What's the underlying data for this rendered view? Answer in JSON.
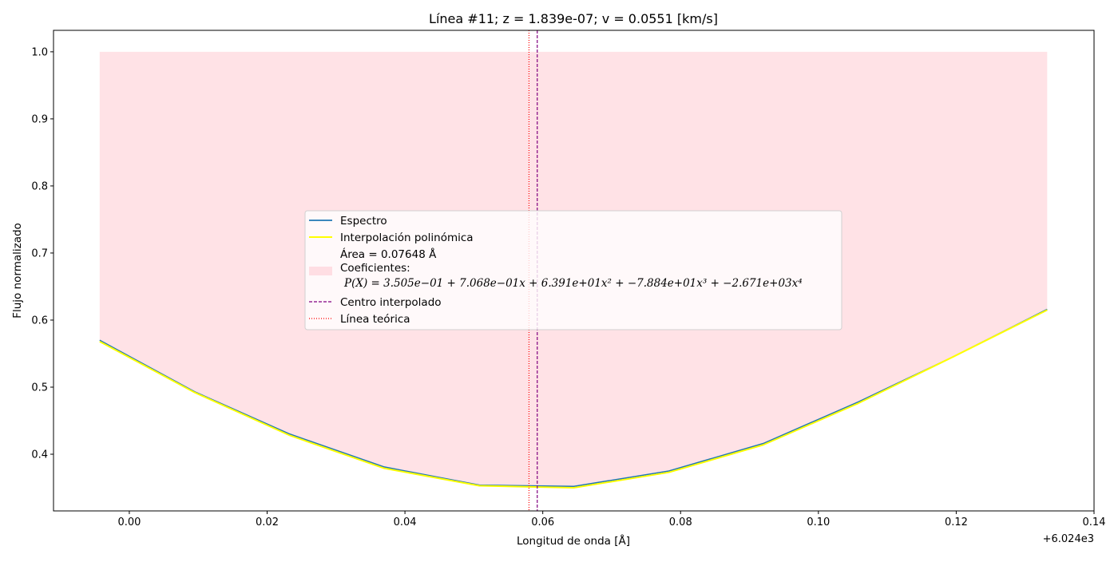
{
  "chart_data": {
    "type": "line",
    "title": "Línea #11; z = 1.839e-07; v = 0.0551 [km/s]",
    "xlabel": "Longitud de onda [Å]",
    "ylabel": "Flujo normalizado",
    "x_offset_label": "+6.024e3",
    "xlim": [
      -0.011,
      0.14
    ],
    "ylim": [
      0.3155,
      1.032
    ],
    "x_ticks": [
      0.0,
      0.02,
      0.04,
      0.06,
      0.08,
      0.1,
      0.12,
      0.14
    ],
    "x_tick_labels": [
      "0.00",
      "0.02",
      "0.04",
      "0.06",
      "0.08",
      "0.10",
      "0.12",
      "0.14"
    ],
    "y_ticks": [
      0.4,
      0.5,
      0.6,
      0.7,
      0.8,
      0.9,
      1.0
    ],
    "y_tick_labels": [
      "0.4",
      "0.5",
      "0.6",
      "0.7",
      "0.8",
      "0.9",
      "1.0"
    ],
    "grid": false,
    "legend_position": "center",
    "series": [
      {
        "name": "Espectro",
        "color": "#1f77b4",
        "x": [
          -0.0043,
          0.0095,
          0.0233,
          0.037,
          0.0508,
          0.0645,
          0.0783,
          0.092,
          0.1058,
          0.1195,
          0.1332
        ],
        "y": [
          0.57,
          0.493,
          0.43,
          0.381,
          0.354,
          0.352,
          0.375,
          0.416,
          0.478,
          0.545,
          0.616
        ]
      },
      {
        "name": "Interpolación polinómica",
        "color": "#ffff00",
        "x": [
          -0.0043,
          0.0095,
          0.0233,
          0.037,
          0.0508,
          0.0645,
          0.0783,
          0.092,
          0.1058,
          0.1195,
          0.1332
        ],
        "y": [
          0.568,
          0.492,
          0.428,
          0.379,
          0.353,
          0.35,
          0.373,
          0.414,
          0.476,
          0.545,
          0.615
        ]
      }
    ],
    "fill_region": {
      "label_area": "Área = 0.07648 Å",
      "label_coef": "Coeficientes:",
      "label_poly": "P(X) = 3.505e−01 + 7.068e−01x + 6.391e+01x² + −7.884e+01x³ + −2.671e+03x⁴",
      "color": "#ffb6c1",
      "top": 1.0
    },
    "vlines": [
      {
        "name": "Centro interpolado",
        "x": 0.0592,
        "color": "#800080",
        "style": "dashed"
      },
      {
        "name": "Línea teórica",
        "x": 0.058,
        "color": "#ff0000",
        "style": "dotted"
      }
    ]
  }
}
